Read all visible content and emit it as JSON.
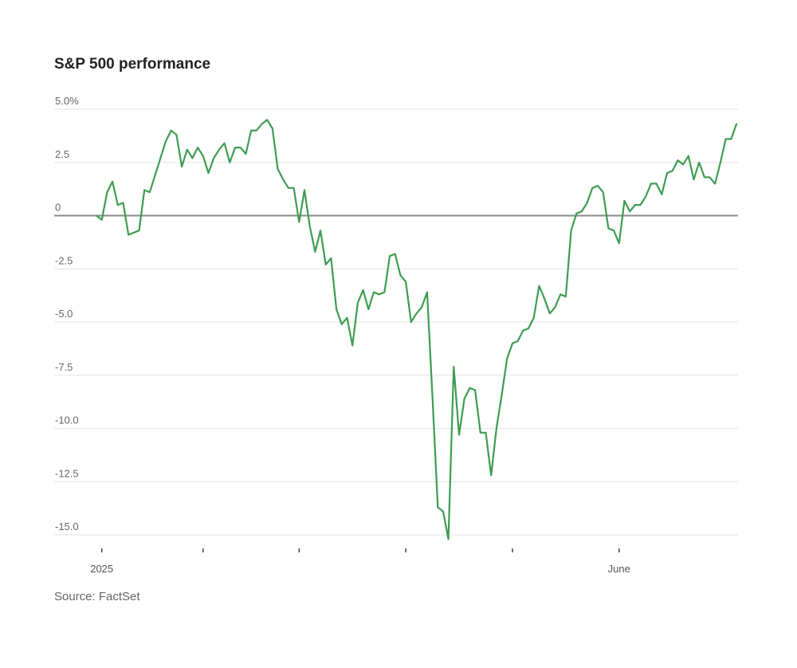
{
  "chart_data": {
    "type": "line",
    "title": "S&P 500 performance",
    "source": "Source: FactSet",
    "xlabel": "",
    "ylabel": "",
    "ylim": [
      -15.0,
      5.0
    ],
    "y_ticks": [
      {
        "value": 5.0,
        "label": "5.0%"
      },
      {
        "value": 2.5,
        "label": "2.5"
      },
      {
        "value": 0,
        "label": "0"
      },
      {
        "value": -2.5,
        "label": "-2.5"
      },
      {
        "value": -5.0,
        "label": "-5.0"
      },
      {
        "value": -7.5,
        "label": "-7.5"
      },
      {
        "value": -10.0,
        "label": "-10.0"
      },
      {
        "value": -12.5,
        "label": "-12.5"
      },
      {
        "value": -15.0,
        "label": "-15.0"
      }
    ],
    "x_ticks": [
      {
        "index": 1,
        "label": "2025"
      },
      {
        "index": 20,
        "label": ""
      },
      {
        "index": 38,
        "label": ""
      },
      {
        "index": 58,
        "label": ""
      },
      {
        "index": 78,
        "label": ""
      },
      {
        "index": 98,
        "label": "June"
      }
    ],
    "grid": true,
    "zero_line": true,
    "line_color": "#3f9b52",
    "series": [
      {
        "values": [
          0.0,
          -0.2,
          1.1,
          1.6,
          0.5,
          0.6,
          -0.9,
          -0.8,
          -0.7,
          1.2,
          1.1,
          1.9,
          2.7,
          3.5,
          4.0,
          3.8,
          2.3,
          3.1,
          2.7,
          3.2,
          2.8,
          2.0,
          2.7,
          3.1,
          3.4,
          2.5,
          3.2,
          3.2,
          2.9,
          4.0,
          4.0,
          4.3,
          4.5,
          4.1,
          2.2,
          1.7,
          1.3,
          1.3,
          -0.3,
          1.2,
          -0.5,
          -1.7,
          -0.7,
          -2.3,
          -2.0,
          -4.4,
          -5.1,
          -4.8,
          -6.1,
          -4.1,
          -3.5,
          -4.4,
          -3.6,
          -3.7,
          -3.6,
          -1.9,
          -1.8,
          -2.8,
          -3.1,
          -5.0,
          -4.6,
          -4.3,
          -3.6,
          -8.5,
          -13.7,
          -13.9,
          -15.2,
          -7.1,
          -10.3,
          -8.6,
          -8.1,
          -8.2,
          -10.2,
          -10.2,
          -12.2,
          -10.0,
          -8.4,
          -6.7,
          -6.0,
          -5.9,
          -5.4,
          -5.3,
          -4.8,
          -3.3,
          -3.9,
          -4.6,
          -4.3,
          -3.7,
          -3.8,
          -0.7,
          0.1,
          0.2,
          0.6,
          1.3,
          1.4,
          1.1,
          -0.6,
          -0.7,
          -1.3,
          0.7,
          0.2,
          0.5,
          0.5,
          0.9,
          1.5,
          1.5,
          1.0,
          2.0,
          2.1,
          2.6,
          2.4,
          2.8,
          1.7,
          2.5,
          1.8,
          1.8,
          1.5,
          2.5,
          3.6,
          3.6,
          4.3
        ]
      }
    ]
  }
}
